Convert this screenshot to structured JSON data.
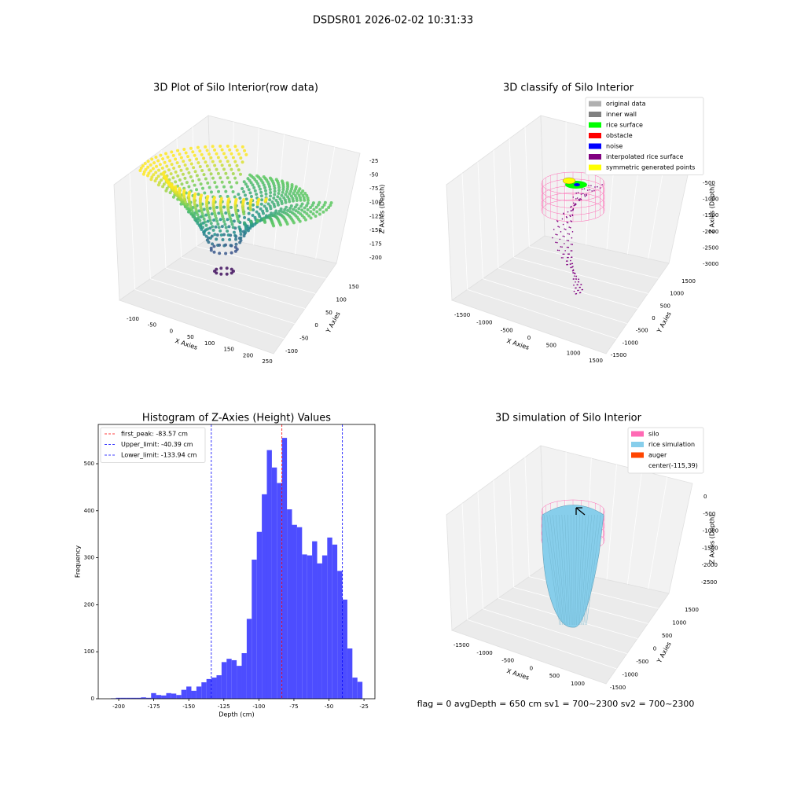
{
  "title": "DSDSR01 2026-02-02 10:31:33",
  "footer": "flag = 0     avgDepth = 650 cm  sv1 = 700~2300  sv2 = 700~2300",
  "chart_data": [
    {
      "type": "scatter3d",
      "title": "3D Plot of Silo Interior(row data)",
      "xlabel": "X Axies",
      "ylabel": "Y Axies",
      "zlabel": "Z Axies (Depth)",
      "xticks": [
        -100,
        -50,
        0,
        50,
        100,
        150,
        200,
        250
      ],
      "yticks": [
        -100,
        -50,
        0,
        50,
        100,
        150
      ],
      "zticks": [
        -25,
        -50,
        -75,
        -100,
        -125,
        -150,
        -175,
        -200
      ]
    },
    {
      "type": "scatter3d",
      "title": "3D classify of Silo Interior",
      "xlabel": "X Axies",
      "ylabel": "Y Axies",
      "zlabel": "Z Axies (Depth)",
      "xticks": [
        -1500,
        -1000,
        -500,
        0,
        500,
        1000,
        1500
      ],
      "yticks": [
        -1500,
        -1000,
        -500,
        0,
        500,
        1000,
        1500
      ],
      "zticks": [
        -500,
        -1000,
        -1500,
        -2000,
        -2500,
        -3000
      ],
      "legend": [
        {
          "name": "original data",
          "color": "#b0b0b0"
        },
        {
          "name": "inner wall",
          "color": "#808080"
        },
        {
          "name": "rice surface",
          "color": "#00ff00"
        },
        {
          "name": "obstacle",
          "color": "#ff0000"
        },
        {
          "name": "noise",
          "color": "#0000ff"
        },
        {
          "name": "interpolated rice surface",
          "color": "#800080"
        },
        {
          "name": "symmetric generated points",
          "color": "#ffff00"
        }
      ]
    },
    {
      "type": "histogram",
      "title": "Histogram of Z-Axies (Height) Values",
      "xlabel": "Depth (cm)",
      "ylabel": "Frequency",
      "color": "#4d4dff",
      "bins": [
        -205.6,
        -202.01,
        -198.42,
        -194.83,
        -191.24,
        -187.65,
        -184.06,
        -180.47,
        -176.88,
        -173.29,
        -169.7,
        -166.11,
        -162.52,
        -158.93,
        -155.34,
        -151.75,
        -148.16,
        -144.57,
        -140.98,
        -137.39,
        -133.8,
        -130.21,
        -126.62,
        -123.03,
        -119.44,
        -115.85,
        -112.26,
        -108.67,
        -105.08,
        -101.49,
        -97.9,
        -94.31,
        -90.72,
        -87.13,
        -83.54,
        -79.95,
        -76.36,
        -72.77,
        -69.18,
        -65.59,
        -62.0,
        -58.41,
        -54.82,
        -51.23,
        -47.64,
        -44.05,
        -40.46,
        -36.87,
        -33.28,
        -29.69,
        -26.1
      ],
      "values": [
        1,
        2,
        2,
        2,
        2,
        2,
        3,
        2,
        12,
        8,
        7,
        12,
        11,
        8,
        19,
        26,
        17,
        26,
        35,
        42,
        45,
        50,
        78,
        85,
        82,
        70,
        97,
        170,
        296,
        355,
        435,
        529,
        492,
        459,
        555,
        403,
        370,
        365,
        307,
        305,
        335,
        288,
        305,
        343,
        328,
        272,
        211,
        107,
        45,
        36
      ],
      "xlim": [
        -214.6,
        -17.2
      ],
      "ylim": [
        0,
        583.6
      ],
      "xticks": [
        -200,
        -175,
        -150,
        -125,
        -100,
        -75,
        -50,
        -25
      ],
      "yticks": [
        0,
        100,
        200,
        300,
        400,
        500
      ],
      "vlines": [
        {
          "name": "first_peak: -83.57 cm",
          "value": -83.57,
          "color": "#ff0000"
        },
        {
          "name": "Upper_limit: -40.39 cm",
          "value": -40.39,
          "color": "#0000ff"
        },
        {
          "name": "Lower_limit: -133.94 cm",
          "value": -133.94,
          "color": "#0000ff"
        }
      ],
      "legend_position": "upper left"
    },
    {
      "type": "surface3d",
      "title": "3D simulation of Silo Interior",
      "xlabel": "X Axies",
      "ylabel": "Y Axies",
      "zlabel": "Z Axies (Depth)",
      "xticks": [
        -1500,
        -1000,
        -500,
        0,
        500,
        1000
      ],
      "yticks": [
        -1500,
        -1000,
        -500,
        0,
        500,
        1000,
        1500
      ],
      "zticks": [
        0,
        -500,
        -1000,
        -1500,
        -2000,
        -2500
      ],
      "legend": [
        {
          "name": "silo",
          "color": "#ff69b4"
        },
        {
          "name": "rice simulation",
          "color": "#87ceeb"
        },
        {
          "name": "auger",
          "color": "#ff4500"
        },
        {
          "name": "center(-115,39)",
          "color": null
        }
      ]
    }
  ]
}
